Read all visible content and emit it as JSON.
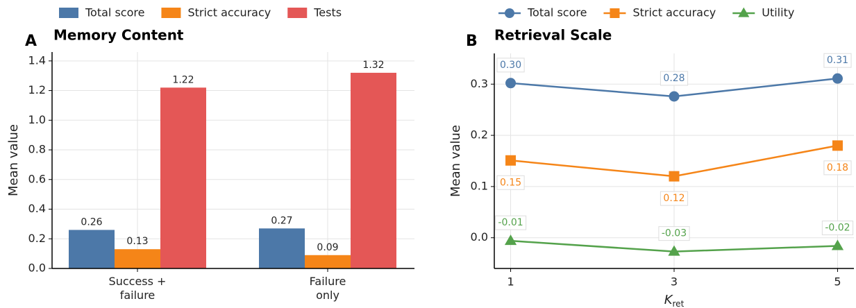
{
  "chart_data": [
    {
      "type": "bar",
      "panel": "A",
      "title": "Memory Content",
      "ylabel": "Mean value",
      "categories": [
        "Success +\nfailure",
        "Failure\nonly"
      ],
      "series": [
        {
          "name": "Total score",
          "color": "#4c78a8",
          "values": [
            0.26,
            0.27
          ]
        },
        {
          "name": "Strict accuracy",
          "color": "#f58518",
          "values": [
            0.13,
            0.09
          ]
        },
        {
          "name": "Tests",
          "color": "#e45756",
          "values": [
            1.22,
            1.32
          ]
        }
      ],
      "ylim": [
        0,
        1.46
      ],
      "yticks": [
        {
          "value": 0,
          "label": "0.0"
        },
        0.2,
        0.4,
        0.6,
        0.8,
        {
          "value": 1,
          "label": "1.0"
        },
        1.2,
        1.4
      ],
      "grid": true
    },
    {
      "type": "line",
      "panel": "B",
      "title": "Retrieval Scale",
      "ylabel": "Mean value",
      "xlabel": "K",
      "xlabel_subscript": "ret",
      "x": [
        1,
        3,
        5
      ],
      "series": [
        {
          "name": "Total score",
          "color": "#4c78a8",
          "marker": "circle",
          "values": [
            0.302,
            0.276,
            0.311
          ],
          "value_labels": [
            "0.30",
            "0.28",
            "0.31"
          ]
        },
        {
          "name": "Strict accuracy",
          "color": "#f58518",
          "marker": "square",
          "values": [
            0.151,
            0.12,
            0.18
          ],
          "value_labels": [
            "0.15",
            "0.12",
            "0.18"
          ]
        },
        {
          "name": "Utility",
          "color": "#54a24b",
          "marker": "triangle",
          "values": [
            -0.006,
            -0.027,
            -0.016
          ],
          "value_labels": [
            "-0.01",
            "-0.03",
            "-0.02"
          ]
        }
      ],
      "xlim": [
        0.8,
        5.2
      ],
      "xticks": [
        1,
        3,
        5
      ],
      "ylim": [
        -0.06,
        0.36
      ],
      "yticks": [
        {
          "value": 0,
          "label": "0.0"
        },
        0.1,
        0.2,
        0.3
      ],
      "grid": true
    }
  ]
}
